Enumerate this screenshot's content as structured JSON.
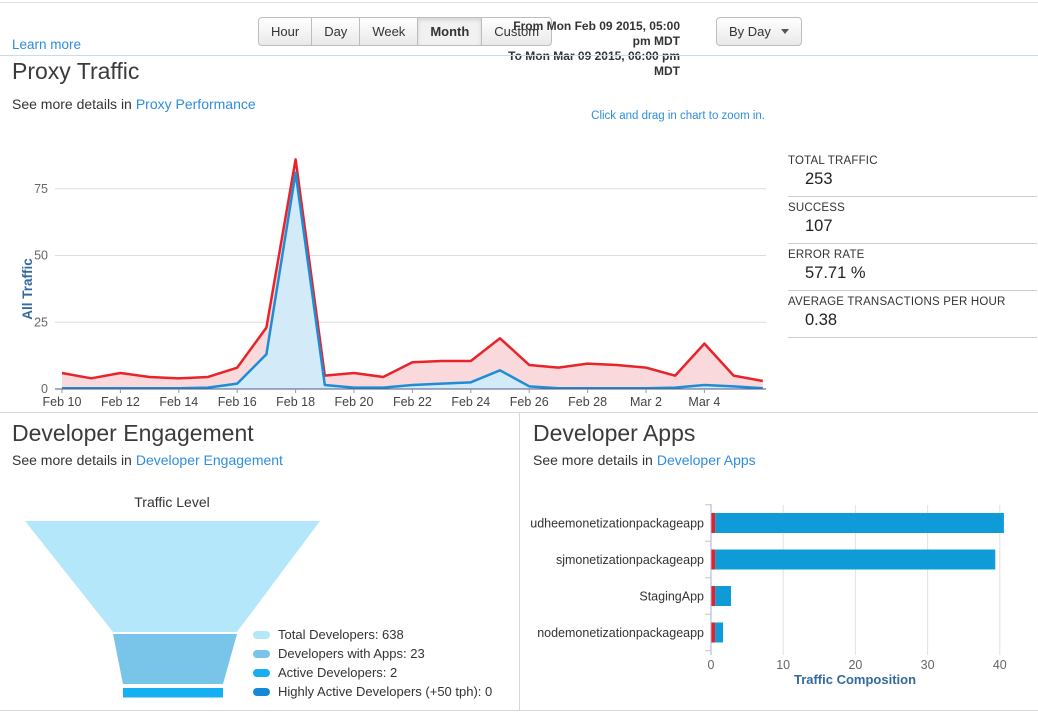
{
  "topbar": {
    "learn_more": "Learn more",
    "range_buttons": [
      "Hour",
      "Day",
      "Week",
      "Month",
      "Custom"
    ],
    "active_range": "Month",
    "date_from": "From Mon Feb 09 2015, 05:00 pm MDT",
    "date_to": "To Mon Mar 09 2015, 06:00 pm MDT",
    "interval_button": "By Day"
  },
  "proxy_traffic": {
    "title": "Proxy Traffic",
    "subtitle_prefix": "See more details in",
    "subtitle_link": "Proxy Performance",
    "zoom_hint": "Click and drag in chart to zoom in.",
    "stats": [
      {
        "label": "TOTAL TRAFFIC",
        "value": "253"
      },
      {
        "label": "SUCCESS",
        "value": "107"
      },
      {
        "label": "ERROR RATE",
        "value": "57.71 %"
      },
      {
        "label": "AVERAGE TRANSACTIONS PER HOUR",
        "value": "0.38"
      }
    ]
  },
  "developer_engagement": {
    "title": "Developer Engagement",
    "subtitle_prefix": "See more details in",
    "subtitle_link": "Developer Engagement",
    "funnel_title": "Traffic Level"
  },
  "developer_apps": {
    "title": "Developer Apps",
    "subtitle_prefix": "See more details in",
    "subtitle_link": "Developer Apps"
  },
  "chart_data": [
    {
      "type": "area",
      "title": "Proxy Traffic",
      "ylabel": "All Traffic",
      "yticks": [
        0,
        25,
        50,
        75
      ],
      "ylim": [
        0,
        90
      ],
      "x": [
        "Feb 10",
        "Feb 11",
        "Feb 12",
        "Feb 13",
        "Feb 14",
        "Feb 15",
        "Feb 16",
        "Feb 17",
        "Feb 18",
        "Feb 19",
        "Feb 20",
        "Feb 21",
        "Feb 22",
        "Feb 23",
        "Feb 24",
        "Feb 25",
        "Feb 26",
        "Feb 27",
        "Feb 28",
        "Mar 1",
        "Mar 2",
        "Mar 3",
        "Mar 4",
        "Mar 5",
        "Mar 6"
      ],
      "x_tick_labels": [
        "Feb 10",
        "Feb 12",
        "Feb 14",
        "Feb 16",
        "Feb 18",
        "Feb 20",
        "Feb 22",
        "Feb 24",
        "Feb 26",
        "Feb 28",
        "Mar 2",
        "Mar 4"
      ],
      "series": [
        {
          "name": "Total Traffic",
          "color": "#e8242b",
          "fill": "#f9d9dc",
          "values": [
            6,
            4,
            6,
            4.5,
            4,
            4.5,
            8,
            23,
            86,
            5,
            6,
            4.5,
            10,
            10.5,
            10.5,
            19,
            9,
            8,
            9.5,
            9,
            8,
            5,
            17,
            5,
            3
          ]
        },
        {
          "name": "Success",
          "color": "#1f8dd6",
          "fill": "#d3eaf8",
          "values": [
            0.3,
            0.3,
            0.3,
            0.3,
            0.3,
            0.5,
            2,
            13,
            81,
            1.5,
            0.5,
            0.5,
            1.5,
            2,
            2.5,
            7,
            1,
            0.3,
            0.3,
            0.3,
            0.3,
            0.5,
            1.5,
            1,
            0.3
          ]
        }
      ],
      "grid": true,
      "legend": "none"
    },
    {
      "type": "funnel",
      "title": "Traffic Level",
      "stages": [
        {
          "name": "Total Developers",
          "value": 638,
          "color": "#b5e7fb"
        },
        {
          "name": "Developers with Apps",
          "value": 23,
          "color": "#79c4e9"
        },
        {
          "name": "Active Developers",
          "value": 2,
          "color": "#16aff2"
        },
        {
          "name": "Highly Active Developers (+50 tph)",
          "value": 0,
          "color": "#1489d8"
        }
      ],
      "legend_position": "right"
    },
    {
      "type": "bar",
      "orientation": "horizontal",
      "categories": [
        "sudheemonetizationpackageapp",
        "sjmonetizationpackageapp",
        "StagingApp",
        "nodemonetizationpackageapp"
      ],
      "series": [
        {
          "name": "Errors",
          "color": "#e32129",
          "values": [
            0.5,
            0.5,
            0.5,
            0.5
          ]
        },
        {
          "name": "Traffic",
          "color": "#0f9bd8",
          "values": [
            40,
            38.8,
            2.2,
            1.1
          ]
        }
      ],
      "xticks": [
        0,
        10,
        20,
        30,
        40
      ],
      "xlim": [
        0,
        41
      ],
      "xlabel": "Traffic Composition",
      "grid": true
    }
  ]
}
